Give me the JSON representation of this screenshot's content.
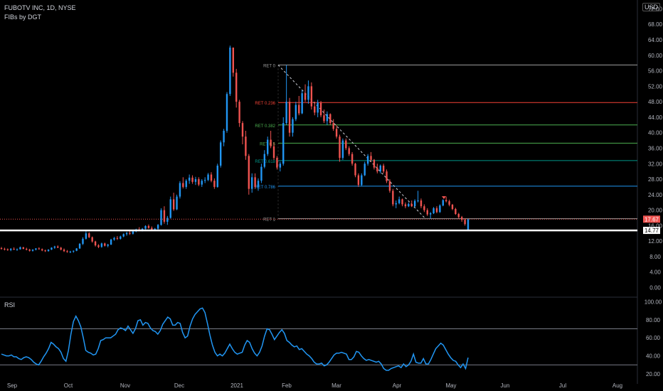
{
  "header": {
    "title": "FUBOTV INC, 1D, NYSE",
    "indicator": "FIBs by DGT",
    "currency": "USD"
  },
  "rsi_panel": {
    "title": "RSI"
  },
  "colors": {
    "up": "#2196f3",
    "down": "#ef5350",
    "rsi_line": "#2196f3",
    "fib_ret0": "#9e9e9e",
    "fib_0236": "#f44336",
    "fib_0382": "#4caf50",
    "fib_05": "#4caf50",
    "fib_0618": "#009688",
    "fib_0786": "#2196f3",
    "fib_1": "#9e9e9e",
    "current_price_bg": "#ef5350",
    "line_price_bg": "#ffffff"
  },
  "chart_data": [
    {
      "type": "candlestick",
      "title": "FUBOTV INC, 1D, NYSE",
      "ylim": [
        0,
        72
      ],
      "y_ticks": [
        "0.00",
        "4.00",
        "8.00",
        "12.00",
        "16.00",
        "20.00",
        "24.00",
        "28.00",
        "32.00",
        "36.00",
        "40.00",
        "44.00",
        "48.00",
        "52.00",
        "56.00",
        "60.00",
        "64.00",
        "68.00",
        "72.00"
      ],
      "x_ticks": [
        "Sep",
        "Oct",
        "Nov",
        "Dec",
        "2021",
        "Feb",
        "Mar",
        "Apr",
        "May",
        "Jun",
        "Jul",
        "Aug"
      ],
      "fib_levels": [
        {
          "label": "RET 0",
          "price": 57.5
        },
        {
          "label": "RET 0.236",
          "price": 47.8
        },
        {
          "label": "RET 0.382",
          "price": 42.0
        },
        {
          "label": "RET 0.5",
          "price": 37.3
        },
        {
          "label": "RET 0.618",
          "price": 32.8
        },
        {
          "label": "RET 0.786",
          "price": 26.2
        },
        {
          "label": "RET 1",
          "price": 17.8
        }
      ],
      "price_labels": [
        {
          "text": "17.67",
          "price": 17.67
        },
        {
          "text": "14.77",
          "price": 14.77
        }
      ],
      "candles": [
        [
          10.2,
          10.5,
          9.8,
          10.0
        ],
        [
          10.0,
          10.3,
          9.6,
          9.9
        ],
        [
          9.9,
          10.1,
          9.5,
          9.7
        ],
        [
          9.7,
          10.2,
          9.4,
          10.0
        ],
        [
          10.0,
          10.4,
          9.7,
          9.8
        ],
        [
          9.8,
          10.1,
          9.5,
          9.9
        ],
        [
          9.9,
          10.6,
          9.8,
          10.4
        ],
        [
          10.4,
          10.5,
          9.9,
          10.0
        ],
        [
          10.0,
          10.3,
          9.6,
          9.8
        ],
        [
          9.8,
          10.0,
          9.3,
          9.5
        ],
        [
          9.5,
          9.9,
          9.3,
          9.8
        ],
        [
          9.8,
          10.2,
          9.6,
          10.1
        ],
        [
          10.1,
          10.4,
          9.8,
          9.9
        ],
        [
          9.9,
          10.1,
          9.4,
          9.6
        ],
        [
          9.6,
          9.8,
          9.2,
          9.4
        ],
        [
          9.4,
          9.9,
          9.3,
          9.8
        ],
        [
          9.8,
          10.4,
          9.7,
          10.3
        ],
        [
          10.3,
          10.8,
          10.0,
          10.6
        ],
        [
          10.6,
          10.9,
          10.2,
          10.3
        ],
        [
          10.3,
          10.5,
          9.6,
          9.8
        ],
        [
          9.8,
          10.1,
          9.2,
          9.4
        ],
        [
          9.4,
          9.7,
          9.0,
          9.2
        ],
        [
          9.2,
          9.5,
          8.9,
          9.3
        ],
        [
          9.3,
          9.6,
          9.0,
          9.5
        ],
        [
          9.5,
          10.2,
          9.4,
          10.1
        ],
        [
          10.1,
          11.5,
          10.0,
          11.3
        ],
        [
          11.3,
          13.0,
          11.0,
          12.6
        ],
        [
          12.6,
          14.5,
          12.4,
          14.0
        ],
        [
          14.0,
          14.3,
          12.8,
          13.0
        ],
        [
          13.0,
          13.2,
          11.6,
          11.9
        ],
        [
          11.9,
          12.1,
          10.6,
          10.9
        ],
        [
          10.9,
          11.2,
          10.2,
          10.5
        ],
        [
          10.5,
          11.6,
          10.3,
          11.4
        ],
        [
          11.4,
          11.6,
          10.6,
          10.8
        ],
        [
          10.8,
          11.3,
          10.4,
          11.1
        ],
        [
          11.1,
          12.6,
          11.0,
          12.4
        ],
        [
          12.4,
          13.1,
          12.1,
          12.8
        ],
        [
          12.8,
          13.3,
          12.3,
          12.6
        ],
        [
          12.6,
          13.4,
          12.4,
          13.2
        ],
        [
          13.2,
          14.0,
          13.0,
          13.8
        ],
        [
          13.8,
          14.4,
          13.4,
          14.1
        ],
        [
          14.1,
          14.6,
          13.6,
          13.9
        ],
        [
          13.9,
          14.7,
          13.7,
          14.5
        ],
        [
          14.5,
          15.2,
          14.3,
          15.0
        ],
        [
          15.0,
          15.6,
          14.6,
          14.8
        ],
        [
          14.8,
          15.4,
          14.5,
          15.2
        ],
        [
          15.2,
          16.1,
          15.0,
          15.9
        ],
        [
          15.9,
          16.3,
          15.2,
          15.4
        ],
        [
          15.4,
          15.8,
          14.8,
          15.0
        ],
        [
          15.0,
          15.4,
          14.6,
          15.2
        ],
        [
          15.2,
          16.4,
          15.0,
          16.2
        ],
        [
          16.2,
          20.5,
          16.0,
          20.0
        ],
        [
          20.0,
          21.0,
          16.5,
          17.0
        ],
        [
          17.0,
          18.5,
          16.2,
          18.0
        ],
        [
          18.0,
          23.5,
          17.8,
          22.8
        ],
        [
          22.8,
          24.5,
          19.8,
          20.2
        ],
        [
          20.2,
          24.0,
          20.0,
          23.5
        ],
        [
          23.5,
          27.5,
          23.0,
          27.0
        ],
        [
          27.0,
          28.5,
          25.6,
          26.0
        ],
        [
          26.0,
          28.0,
          25.5,
          27.6
        ],
        [
          27.6,
          29.2,
          26.8,
          28.4
        ],
        [
          28.4,
          29.0,
          26.8,
          27.3
        ],
        [
          27.3,
          28.6,
          26.5,
          28.0
        ],
        [
          28.0,
          28.5,
          26.2,
          26.6
        ],
        [
          26.6,
          28.0,
          26.0,
          27.6
        ],
        [
          27.6,
          28.5,
          27.0,
          27.8
        ],
        [
          27.8,
          29.6,
          27.5,
          29.2
        ],
        [
          29.2,
          29.8,
          27.2,
          27.6
        ],
        [
          27.6,
          28.2,
          25.5,
          26.0
        ],
        [
          26.0,
          32.0,
          25.8,
          31.5
        ],
        [
          31.5,
          38.0,
          31.0,
          37.5
        ],
        [
          37.5,
          41.0,
          36.5,
          40.5
        ],
        [
          40.5,
          50.5,
          40.0,
          50.0
        ],
        [
          50.0,
          62.5,
          49.5,
          62.0
        ],
        [
          62.0,
          62.0,
          54.5,
          55.5
        ],
        [
          55.5,
          56.5,
          46.5,
          48.0
        ],
        [
          48.0,
          48.5,
          41.5,
          42.5
        ],
        [
          42.5,
          43.0,
          37.0,
          39.0
        ],
        [
          39.0,
          40.5,
          33.0,
          34.0
        ],
        [
          34.0,
          34.5,
          24.0,
          25.5
        ],
        [
          25.5,
          29.5,
          24.5,
          28.5
        ],
        [
          28.5,
          29.5,
          25.5,
          26.0
        ],
        [
          26.0,
          28.2,
          25.0,
          27.6
        ],
        [
          27.6,
          32.0,
          27.0,
          31.2
        ],
        [
          31.2,
          35.5,
          30.8,
          34.5
        ],
        [
          34.5,
          39.0,
          34.0,
          38.2
        ],
        [
          38.2,
          40.5,
          36.0,
          36.5
        ],
        [
          36.5,
          37.5,
          33.0,
          33.5
        ],
        [
          33.5,
          34.0,
          30.5,
          31.0
        ],
        [
          31.0,
          32.5,
          30.0,
          32.0
        ],
        [
          32.0,
          44.0,
          31.5,
          42.5
        ],
        [
          42.5,
          57.5,
          42.0,
          48.0
        ],
        [
          48.0,
          49.0,
          39.0,
          40.0
        ],
        [
          40.0,
          44.0,
          39.0,
          43.5
        ],
        [
          43.5,
          48.0,
          43.0,
          47.2
        ],
        [
          47.2,
          49.5,
          44.5,
          45.0
        ],
        [
          45.0,
          51.0,
          44.8,
          50.2
        ],
        [
          50.2,
          52.5,
          48.0,
          48.5
        ],
        [
          48.5,
          53.5,
          47.5,
          52.0
        ],
        [
          52.0,
          53.0,
          46.0,
          46.8
        ],
        [
          46.8,
          48.0,
          44.5,
          45.2
        ],
        [
          45.2,
          48.5,
          44.0,
          47.8
        ],
        [
          47.8,
          48.2,
          44.0,
          44.5
        ],
        [
          44.5,
          46.0,
          42.5,
          43.0
        ],
        [
          43.0,
          45.5,
          42.0,
          44.8
        ],
        [
          44.8,
          45.0,
          42.0,
          42.5
        ],
        [
          42.5,
          43.5,
          40.5,
          41.0
        ],
        [
          41.0,
          42.0,
          38.5,
          39.0
        ],
        [
          39.0,
          39.5,
          32.5,
          33.5
        ],
        [
          33.5,
          38.5,
          33.0,
          38.0
        ],
        [
          38.0,
          38.5,
          35.5,
          36.0
        ],
        [
          36.0,
          36.5,
          34.0,
          34.5
        ],
        [
          34.5,
          35.0,
          31.5,
          32.0
        ],
        [
          32.0,
          32.2,
          28.5,
          29.0
        ],
        [
          29.0,
          29.5,
          26.0,
          26.5
        ],
        [
          26.5,
          29.5,
          26.2,
          29.0
        ],
        [
          29.0,
          32.5,
          28.8,
          32.0
        ],
        [
          32.0,
          34.5,
          31.5,
          34.0
        ],
        [
          34.0,
          35.0,
          32.5,
          33.0
        ],
        [
          33.0,
          33.2,
          30.5,
          31.0
        ],
        [
          31.0,
          32.0,
          29.5,
          30.0
        ],
        [
          30.0,
          31.8,
          29.5,
          31.5
        ],
        [
          31.5,
          32.0,
          29.5,
          30.0
        ],
        [
          30.0,
          30.5,
          27.0,
          27.5
        ],
        [
          27.5,
          28.0,
          24.5,
          25.0
        ],
        [
          25.0,
          25.5,
          21.0,
          21.5
        ],
        [
          21.5,
          22.5,
          20.5,
          21.8
        ],
        [
          21.8,
          23.5,
          21.5,
          22.8
        ],
        [
          22.8,
          23.0,
          21.0,
          21.5
        ],
        [
          21.5,
          22.0,
          20.5,
          21.0
        ],
        [
          21.0,
          22.0,
          20.8,
          21.6
        ],
        [
          21.6,
          22.5,
          20.8,
          21.0
        ],
        [
          21.0,
          22.8,
          20.8,
          22.4
        ],
        [
          22.4,
          25.0,
          22.0,
          22.5
        ],
        [
          22.5,
          23.0,
          20.5,
          21.0
        ],
        [
          21.0,
          21.5,
          19.5,
          20.0
        ],
        [
          20.0,
          20.5,
          18.5,
          18.9
        ],
        [
          18.9,
          19.5,
          17.8,
          19.2
        ],
        [
          19.2,
          20.8,
          19.0,
          20.5
        ],
        [
          20.5,
          21.0,
          19.2,
          19.5
        ],
        [
          19.5,
          21.5,
          19.3,
          21.2
        ],
        [
          21.2,
          22.8,
          21.0,
          22.6
        ],
        [
          22.6,
          23.5,
          22.0,
          22.3
        ],
        [
          22.3,
          22.7,
          21.0,
          21.4
        ],
        [
          21.4,
          21.6,
          20.0,
          20.3
        ],
        [
          20.3,
          20.6,
          18.8,
          19.0
        ],
        [
          19.0,
          19.3,
          17.8,
          18.2
        ],
        [
          18.2,
          18.5,
          17.0,
          17.5
        ],
        [
          17.5,
          17.9,
          16.0,
          16.4
        ],
        [
          14.9,
          17.7,
          14.8,
          17.67
        ]
      ],
      "last_candle_index_of_decline_start": 92
    },
    {
      "type": "line",
      "title": "RSI",
      "ylim": [
        20,
        100
      ],
      "y_ticks": [
        "20.00",
        "40.00",
        "60.00",
        "80.00",
        "100.00"
      ],
      "reference_lines": [
        30,
        70
      ],
      "values": [
        42,
        41,
        40,
        40,
        41,
        39,
        39,
        37,
        36,
        38,
        39,
        38,
        36,
        33,
        31,
        30,
        34,
        39,
        43,
        48,
        55,
        53,
        50,
        48,
        44,
        37,
        34,
        46,
        64,
        78,
        84,
        79,
        72,
        60,
        46,
        44,
        43,
        41,
        42,
        48,
        57,
        58,
        60,
        60,
        60,
        62,
        64,
        69,
        71,
        70,
        68,
        73,
        69,
        65,
        70,
        79,
        80,
        74,
        77,
        76,
        71,
        68,
        67,
        64,
        68,
        75,
        79,
        83,
        81,
        74,
        74,
        77,
        76,
        66,
        60,
        62,
        73,
        81,
        86,
        89,
        92,
        93,
        88,
        76,
        63,
        52,
        44,
        40,
        42,
        40,
        43,
        48,
        53,
        48,
        44,
        42,
        43,
        44,
        52,
        57,
        55,
        48,
        43,
        40,
        44,
        51,
        62,
        70,
        69,
        64,
        58,
        62,
        66,
        69,
        65,
        57,
        55,
        52,
        50,
        51,
        47,
        48,
        45,
        42,
        40,
        37,
        33,
        31,
        31,
        32,
        29,
        30,
        33,
        37,
        41,
        43,
        43,
        44,
        43,
        42,
        36,
        36,
        39,
        45,
        44,
        40,
        37,
        35,
        36,
        35,
        34,
        33,
        34,
        31,
        26,
        24,
        24,
        26,
        27,
        28,
        29,
        27,
        31,
        28,
        30,
        34,
        42,
        33,
        32,
        32,
        37,
        31,
        31,
        36,
        42,
        48,
        51,
        54,
        52,
        47,
        42,
        38,
        35,
        34,
        30,
        27,
        31,
        26,
        38
      ]
    }
  ]
}
